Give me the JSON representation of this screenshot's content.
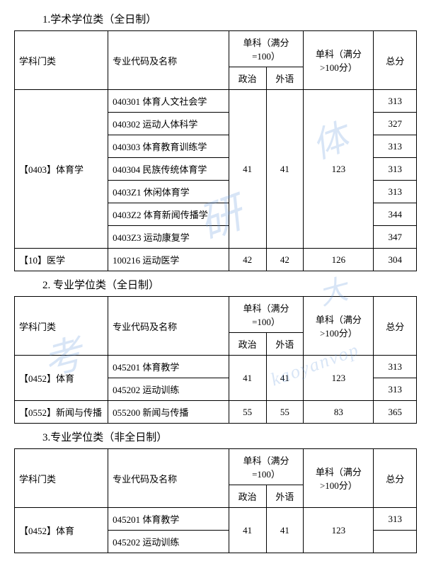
{
  "sections": [
    {
      "title": "1.学术学位类（全日制）",
      "headers": {
        "category": "学科门类",
        "major": "专业代码及名称",
        "danke100": "单科（满分=100）",
        "zhengzhi": "政治",
        "waiyu": "外语",
        "danke_gt100": "单科（满分>100分）",
        "total": "总分"
      },
      "groups": [
        {
          "category": "【0403】体育学",
          "zhengzhi": "41",
          "waiyu": "41",
          "danke2": "123",
          "rows": [
            {
              "major": "040301 体育人文社会学",
              "total": "313"
            },
            {
              "major": "040302 运动人体科学",
              "total": "327"
            },
            {
              "major": "040303 体育教育训练学",
              "total": "313"
            },
            {
              "major": "040304 民族传统体育学",
              "total": "313"
            },
            {
              "major": "0403Z1 休闲体育学",
              "total": "313"
            },
            {
              "major": "0403Z2 体育新闻传播学",
              "total": "344"
            },
            {
              "major": "0403Z3 运动康复学",
              "total": "347"
            }
          ]
        },
        {
          "category": "【10】医学",
          "zhengzhi": "42",
          "waiyu": "42",
          "danke2": "126",
          "rows": [
            {
              "major": "100216 运动医学",
              "total": "304"
            }
          ]
        }
      ]
    },
    {
      "title": "2.  专业学位类（全日制）",
      "headers": {
        "category": "学科门类",
        "major": "专业代码及名称",
        "danke100": "单科（满分=100）",
        "zhengzhi": "政治",
        "waiyu": "外语",
        "danke_gt100": "单科（满分>100分）",
        "total": "总分"
      },
      "groups": [
        {
          "category": "【0452】体育",
          "zhengzhi": "41",
          "waiyu": "41",
          "danke2": "123",
          "rows": [
            {
              "major": "045201 体育教学",
              "total": "313"
            },
            {
              "major": "045202 运动训练",
              "total": "313"
            }
          ]
        },
        {
          "category": "【0552】新闻与传播",
          "zhengzhi": "55",
          "waiyu": "55",
          "danke2": "83",
          "rows": [
            {
              "major": "055200 新闻与传播",
              "total": "365"
            }
          ]
        }
      ]
    },
    {
      "title": "3.专业学位类（非全日制）",
      "headers": {
        "category": "学科门类",
        "major": "专业代码及名称",
        "danke100": "单科（满分=100）",
        "zhengzhi": "政治",
        "waiyu": "外语",
        "danke_gt100": "单科（满分>100分）",
        "total": "总分"
      },
      "groups": [
        {
          "category": "【0452】体育",
          "zhengzhi": "41",
          "waiyu": "41",
          "danke2": "123",
          "rows": [
            {
              "major": "045201 体育教学",
              "total": "313"
            },
            {
              "major": "045202 运动训练",
              "total": ""
            }
          ]
        }
      ]
    }
  ],
  "watermarks": {
    "w1": "体",
    "w2": "研",
    "w3": "大",
    "w4": "考",
    "w5": "kaoyanvop"
  }
}
